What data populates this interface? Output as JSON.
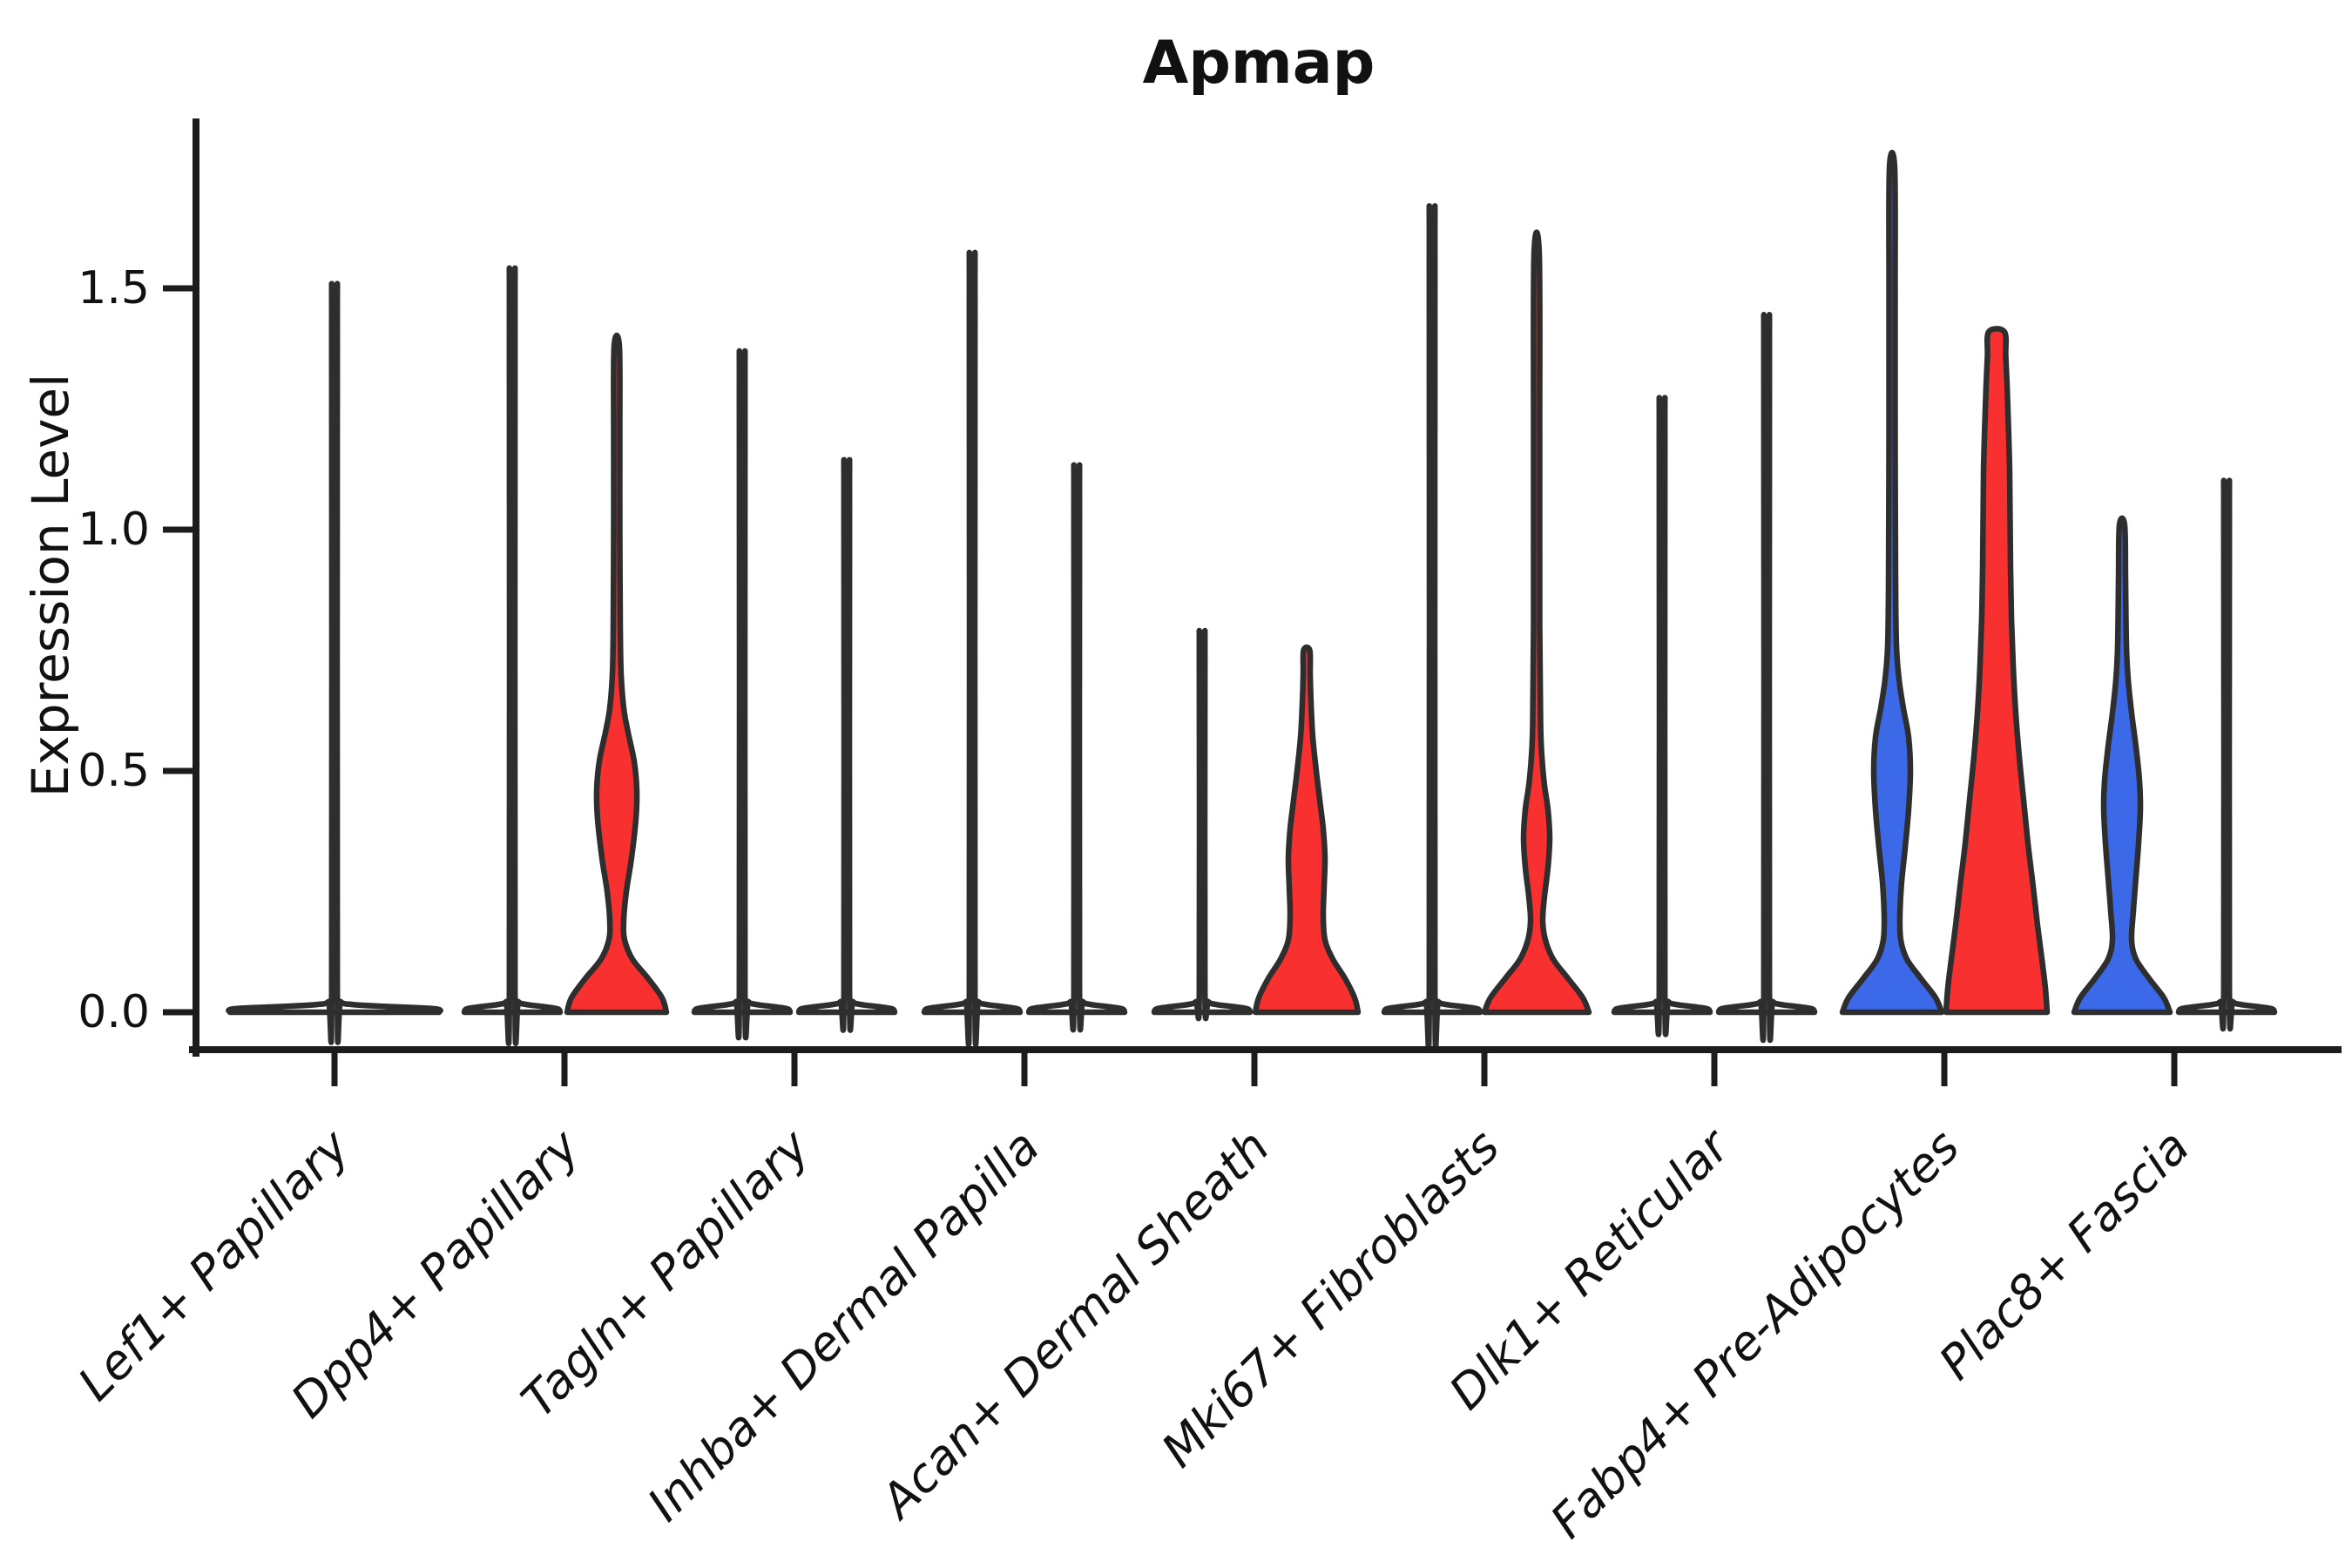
{
  "title": "Apmap",
  "y_axis": {
    "label": "Expression Level"
  },
  "chart_data": {
    "type": "violin",
    "title": "Apmap",
    "ylabel": "Expression Level",
    "xlabel": "",
    "grid": false,
    "legend_position": "none",
    "ylim": [
      -0.09,
      1.85
    ],
    "yticks": [
      {
        "value": 0.0,
        "label": "0.0"
      },
      {
        "value": 0.5,
        "label": "0.5"
      },
      {
        "value": 1.0,
        "label": "1.0"
      },
      {
        "value": 1.5,
        "label": "1.5"
      }
    ],
    "categories": [
      "Lef1+ Papillary",
      "Dpp4+ Papillary",
      "Tagln+ Papillary",
      "Inhba+ Dermal Papilla",
      "Acan+ Dermal Sheath",
      "Mki67+ Fibroblasts",
      "Dlk1+ Reticular",
      "Fabp4+ Pre-Adipocytes",
      "Plac8+ Fascia"
    ],
    "colors": {
      "blue_fill": "#3c69e8",
      "red_fill": "#f93030",
      "outline": "#2e2e2e"
    },
    "profile_units": "value_vs_halfwidth_px",
    "violins": [
      {
        "category_index": 0,
        "position": "center",
        "fill": null,
        "max_expression": 1.43,
        "profile": [
          [
            0,
            120
          ],
          [
            0.007,
            116
          ],
          [
            0.012,
            60
          ],
          [
            0.016,
            20
          ],
          [
            0.022,
            7
          ],
          [
            0.045,
            3.2
          ],
          [
            1.4,
            3.2
          ],
          [
            1.43,
            2.6
          ]
        ]
      },
      {
        "category_index": 1,
        "position": "left",
        "fill": null,
        "max_expression": 1.46,
        "profile": [
          [
            0,
            55
          ],
          [
            0.007,
            52
          ],
          [
            0.012,
            34
          ],
          [
            0.016,
            16
          ],
          [
            0.022,
            7
          ],
          [
            0.045,
            3.2
          ],
          [
            1.43,
            3.2
          ],
          [
            1.46,
            2.6
          ]
        ]
      },
      {
        "category_index": 1,
        "position": "right",
        "fill": "red",
        "max_expression": 1.38,
        "profile": [
          [
            0,
            57
          ],
          [
            0.03,
            52
          ],
          [
            0.07,
            36
          ],
          [
            0.11,
            18
          ],
          [
            0.15,
            9
          ],
          [
            0.19,
            8
          ],
          [
            0.25,
            11
          ],
          [
            0.32,
            17
          ],
          [
            0.4,
            22
          ],
          [
            0.46,
            23
          ],
          [
            0.52,
            20
          ],
          [
            0.58,
            13
          ],
          [
            0.63,
            8
          ],
          [
            0.7,
            5
          ],
          [
            0.8,
            4
          ],
          [
            1.0,
            3.5
          ],
          [
            1.2,
            3.5
          ],
          [
            1.38,
            3
          ]
        ]
      },
      {
        "category_index": 2,
        "position": "left",
        "fill": null,
        "max_expression": 1.3,
        "profile": [
          [
            0,
            55
          ],
          [
            0.007,
            52
          ],
          [
            0.012,
            34
          ],
          [
            0.016,
            16
          ],
          [
            0.022,
            7
          ],
          [
            0.045,
            3.2
          ],
          [
            1.27,
            3.2
          ],
          [
            1.3,
            2.6
          ]
        ]
      },
      {
        "category_index": 2,
        "position": "right",
        "fill": null,
        "max_expression": 1.09,
        "profile": [
          [
            0,
            55
          ],
          [
            0.007,
            52
          ],
          [
            0.012,
            34
          ],
          [
            0.016,
            16
          ],
          [
            0.022,
            7
          ],
          [
            0.045,
            3.2
          ],
          [
            1.06,
            3.2
          ],
          [
            1.09,
            2.6
          ]
        ]
      },
      {
        "category_index": 3,
        "position": "left",
        "fill": null,
        "max_expression": 1.49,
        "profile": [
          [
            0,
            55
          ],
          [
            0.007,
            52
          ],
          [
            0.012,
            34
          ],
          [
            0.016,
            16
          ],
          [
            0.022,
            7
          ],
          [
            0.045,
            3.2
          ],
          [
            1.46,
            3.2
          ],
          [
            1.49,
            2.6
          ]
        ]
      },
      {
        "category_index": 3,
        "position": "right",
        "fill": null,
        "max_expression": 1.08,
        "profile": [
          [
            0,
            55
          ],
          [
            0.007,
            52
          ],
          [
            0.012,
            34
          ],
          [
            0.016,
            16
          ],
          [
            0.022,
            7
          ],
          [
            0.045,
            3.2
          ],
          [
            1.05,
            3.2
          ],
          [
            1.08,
            2.6
          ]
        ]
      },
      {
        "category_index": 4,
        "position": "left",
        "fill": null,
        "max_expression": 0.76,
        "profile": [
          [
            0,
            55
          ],
          [
            0.007,
            52
          ],
          [
            0.012,
            34
          ],
          [
            0.016,
            16
          ],
          [
            0.022,
            7
          ],
          [
            0.045,
            3.2
          ],
          [
            0.73,
            3.2
          ],
          [
            0.76,
            2.6
          ]
        ]
      },
      {
        "category_index": 4,
        "position": "right",
        "fill": "red",
        "max_expression": 0.75,
        "profile": [
          [
            0,
            59
          ],
          [
            0.03,
            55
          ],
          [
            0.07,
            44
          ],
          [
            0.11,
            30
          ],
          [
            0.15,
            21
          ],
          [
            0.2,
            19
          ],
          [
            0.26,
            20
          ],
          [
            0.32,
            21
          ],
          [
            0.38,
            19
          ],
          [
            0.44,
            15
          ],
          [
            0.5,
            11
          ],
          [
            0.57,
            7
          ],
          [
            0.64,
            5
          ],
          [
            0.7,
            4
          ],
          [
            0.75,
            3.5
          ]
        ]
      },
      {
        "category_index": 5,
        "position": "left",
        "fill": null,
        "max_expression": 1.58,
        "profile": [
          [
            0,
            55
          ],
          [
            0.007,
            52
          ],
          [
            0.012,
            34
          ],
          [
            0.016,
            16
          ],
          [
            0.022,
            7
          ],
          [
            0.045,
            3.2
          ],
          [
            1.55,
            3.2
          ],
          [
            1.58,
            2.6
          ]
        ]
      },
      {
        "category_index": 5,
        "position": "right",
        "fill": "red",
        "max_expression": 1.57,
        "profile": [
          [
            0,
            60
          ],
          [
            0.03,
            53
          ],
          [
            0.07,
            36
          ],
          [
            0.11,
            19
          ],
          [
            0.15,
            10
          ],
          [
            0.19,
            7
          ],
          [
            0.24,
            9
          ],
          [
            0.3,
            13
          ],
          [
            0.36,
            15
          ],
          [
            0.42,
            13
          ],
          [
            0.47,
            9
          ],
          [
            0.53,
            6
          ],
          [
            0.6,
            4.5
          ],
          [
            0.8,
            3.5
          ],
          [
            1.2,
            3.5
          ],
          [
            1.57,
            3
          ]
        ]
      },
      {
        "category_index": 6,
        "position": "left",
        "fill": null,
        "max_expression": 1.21,
        "profile": [
          [
            0,
            55
          ],
          [
            0.007,
            52
          ],
          [
            0.012,
            34
          ],
          [
            0.016,
            16
          ],
          [
            0.022,
            7
          ],
          [
            0.045,
            3.2
          ],
          [
            1.18,
            3.2
          ],
          [
            1.21,
            2.6
          ]
        ]
      },
      {
        "category_index": 6,
        "position": "right",
        "fill": null,
        "max_expression": 1.37,
        "profile": [
          [
            0,
            55
          ],
          [
            0.007,
            52
          ],
          [
            0.012,
            34
          ],
          [
            0.016,
            16
          ],
          [
            0.022,
            7
          ],
          [
            0.045,
            3.2
          ],
          [
            1.34,
            3.2
          ],
          [
            1.37,
            2.6
          ]
        ]
      },
      {
        "category_index": 7,
        "position": "left",
        "fill": "blue",
        "max_expression": 1.75,
        "profile": [
          [
            0,
            57
          ],
          [
            0.03,
            50
          ],
          [
            0.07,
            33
          ],
          [
            0.11,
            17
          ],
          [
            0.15,
            10
          ],
          [
            0.2,
            9
          ],
          [
            0.27,
            11
          ],
          [
            0.34,
            15
          ],
          [
            0.42,
            19
          ],
          [
            0.5,
            21
          ],
          [
            0.57,
            19
          ],
          [
            0.63,
            13
          ],
          [
            0.69,
            8
          ],
          [
            0.76,
            5
          ],
          [
            0.9,
            4
          ],
          [
            1.2,
            3.5
          ],
          [
            1.5,
            3.5
          ],
          [
            1.75,
            3
          ]
        ]
      },
      {
        "category_index": 7,
        "position": "right",
        "fill": "red",
        "max_expression": 1.41,
        "profile": [
          [
            0,
            58
          ],
          [
            0.05,
            56
          ],
          [
            0.11,
            52
          ],
          [
            0.18,
            47
          ],
          [
            0.26,
            42
          ],
          [
            0.35,
            36
          ],
          [
            0.44,
            31
          ],
          [
            0.53,
            26
          ],
          [
            0.62,
            22
          ],
          [
            0.72,
            19
          ],
          [
            0.82,
            17
          ],
          [
            0.92,
            16
          ],
          [
            1.02,
            15.5
          ],
          [
            1.12,
            15
          ],
          [
            1.22,
            13.5
          ],
          [
            1.3,
            12
          ],
          [
            1.36,
            10.5
          ],
          [
            1.41,
            9
          ]
        ]
      },
      {
        "category_index": 8,
        "position": "left",
        "fill": "blue",
        "max_expression": 1.01,
        "profile": [
          [
            0,
            55
          ],
          [
            0.03,
            48
          ],
          [
            0.07,
            31
          ],
          [
            0.11,
            16
          ],
          [
            0.15,
            11
          ],
          [
            0.21,
            13
          ],
          [
            0.28,
            16
          ],
          [
            0.35,
            19
          ],
          [
            0.42,
            21
          ],
          [
            0.48,
            20
          ],
          [
            0.55,
            16
          ],
          [
            0.62,
            11
          ],
          [
            0.69,
            7
          ],
          [
            0.76,
            5
          ],
          [
            0.9,
            4
          ],
          [
            1.01,
            3
          ]
        ]
      },
      {
        "category_index": 8,
        "position": "right",
        "fill": null,
        "max_expression": 1.05,
        "profile": [
          [
            0,
            55
          ],
          [
            0.007,
            52
          ],
          [
            0.012,
            34
          ],
          [
            0.016,
            16
          ],
          [
            0.022,
            7
          ],
          [
            0.045,
            3.2
          ],
          [
            1.02,
            3.2
          ],
          [
            1.05,
            2.6
          ]
        ]
      }
    ]
  }
}
